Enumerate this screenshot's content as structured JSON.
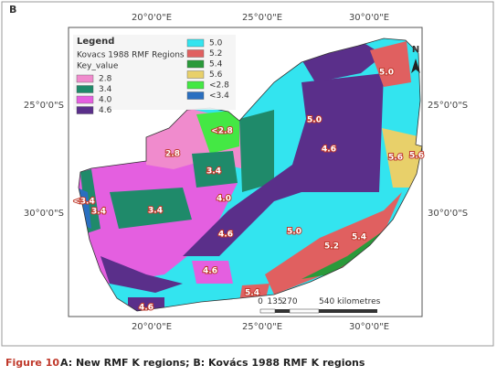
{
  "panel_label": "B",
  "legend": {
    "title": "Legend",
    "subtitle": "Kovacs 1988 RMF Regions",
    "field": "Key_value",
    "items": [
      {
        "label": "2.8",
        "color": "#f08bcd"
      },
      {
        "label": "3.4",
        "color": "#1f8a6a"
      },
      {
        "label": "4.0",
        "color": "#e45fe0"
      },
      {
        "label": "4.6",
        "color": "#5a2f8a"
      },
      {
        "label": "5.0",
        "color": "#33e4ef"
      },
      {
        "label": "5.2",
        "color": "#e06060"
      },
      {
        "label": "5.4",
        "color": "#2a9a3a"
      },
      {
        "label": "5.6",
        "color": "#e8d06a"
      },
      {
        "label": "<2.8",
        "color": "#44e844"
      },
      {
        "label": "<3.4",
        "color": "#2a6fc0"
      }
    ]
  },
  "map_labels": [
    "5.0",
    "5.0",
    "<2.8",
    "2.8",
    "4.6",
    "3.4",
    "5.6",
    "5.6",
    "<3.4",
    "3.4",
    "3.4",
    "4.0",
    "4.6",
    "5.0",
    "5.2",
    "5.4",
    "4.6",
    "5.4",
    "4.6"
  ],
  "north": "N",
  "scale": [
    "0",
    "135",
    "270",
    "540 kilometres"
  ],
  "coordinates": {
    "top": [
      "20°0'0\"E",
      "25°0'0\"E",
      "30°0'0\"E"
    ],
    "bottom": [
      "20°0'0\"E",
      "25°0'0\"E",
      "30°0'0\"E"
    ],
    "left": [
      "25°0'0\"S",
      "30°0'0\"S"
    ],
    "right": [
      "25°0'0\"S",
      "30°0'0\"S"
    ]
  },
  "caption": {
    "label": "Figure 10",
    "text": "A: New RMF K regions; B: Kovács 1988 RMF K regions"
  }
}
